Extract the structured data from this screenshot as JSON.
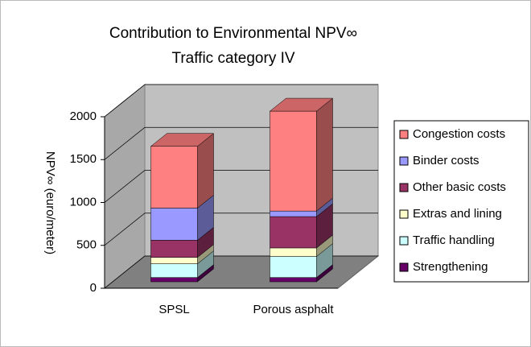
{
  "chart_data": {
    "type": "bar3d_stacked",
    "title": "Contribution to Environmental NPV∞",
    "subtitle": "Traffic category IV",
    "y_label": "NPV∞ (euro/meter)",
    "categories": [
      "SPSL",
      "Porous asphalt"
    ],
    "series": [
      {
        "name": "Strengthening",
        "color": "#660066",
        "values": [
          50,
          50
        ]
      },
      {
        "name": "Traffic handling",
        "color": "#ccffff",
        "values": [
          160,
          245
        ]
      },
      {
        "name": "Extras and lining",
        "color": "#ffffcc",
        "values": [
          75,
          100
        ]
      },
      {
        "name": "Other basic costs",
        "color": "#993366",
        "values": [
          200,
          365
        ]
      },
      {
        "name": "Binder costs",
        "color": "#9999ff",
        "values": [
          375,
          65
        ]
      },
      {
        "name": "Congestion costs",
        "color": "#ff8080",
        "values": [
          720,
          1165
        ]
      }
    ],
    "ylim": [
      0,
      2000
    ],
    "yticks": [
      0,
      500,
      1000,
      1500,
      2000
    ],
    "grid": true,
    "legend": "right"
  }
}
